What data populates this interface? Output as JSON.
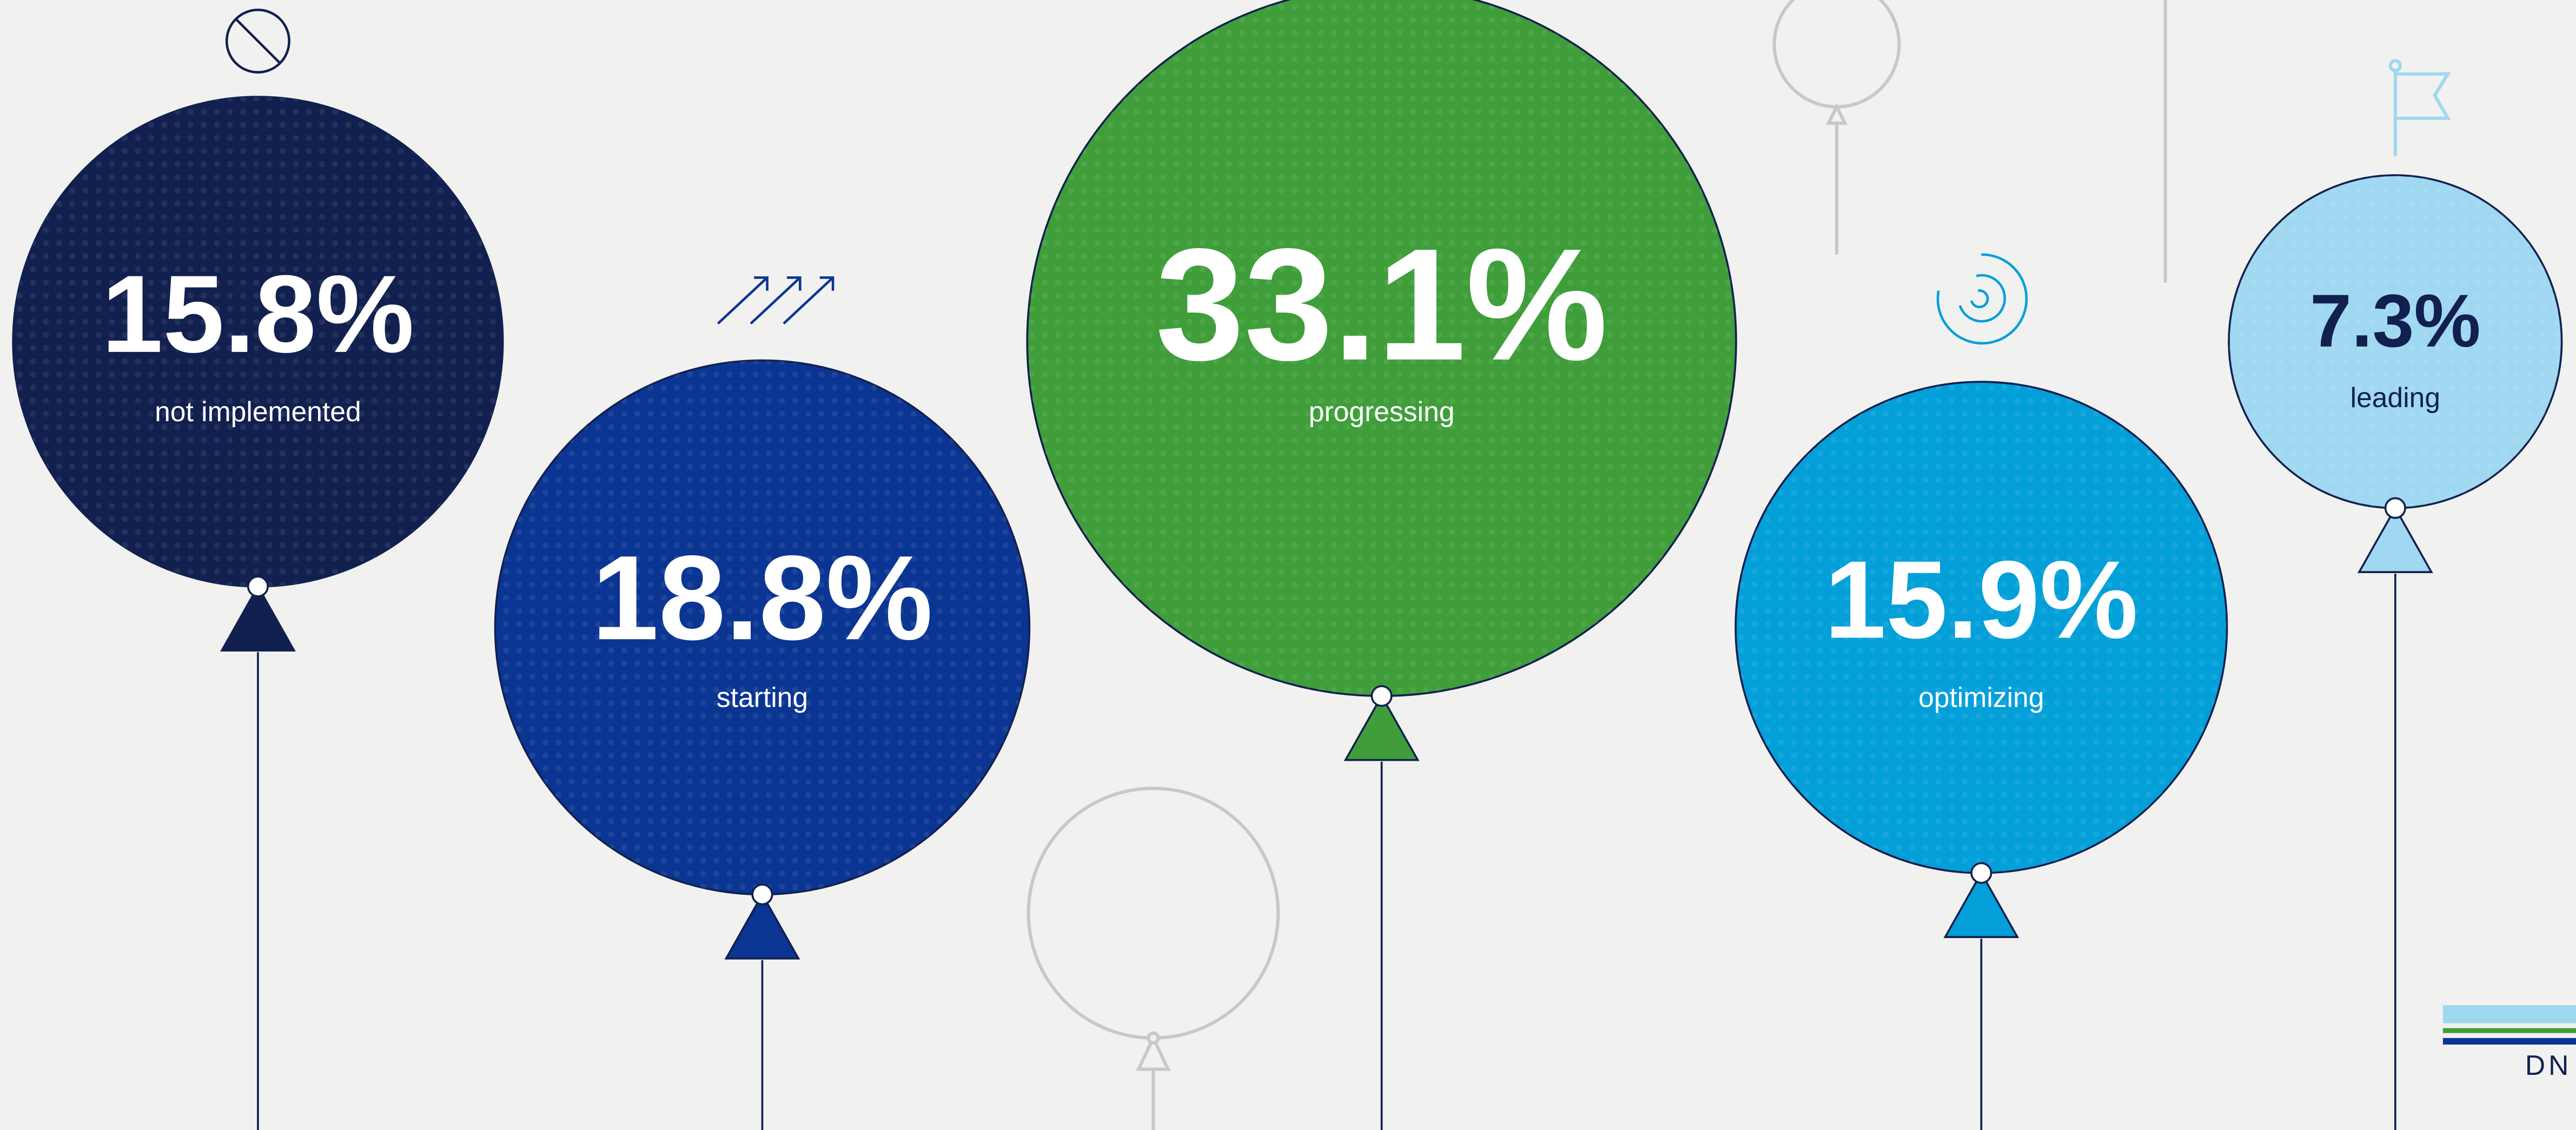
{
  "chart_data": {
    "type": "balloon",
    "categories": [
      "not implemented",
      "starting",
      "progressing",
      "optimizing",
      "leading"
    ],
    "values": [
      15.8,
      18.8,
      33.1,
      15.9,
      7.3
    ],
    "value_labels": [
      "15.8%",
      "18.8%",
      "33.1%",
      "15.9%",
      "7.3%"
    ],
    "colors": [
      "#12204f",
      "#0a3593",
      "#3f9e3a",
      "#039fd9",
      "#9fd8f0"
    ],
    "text_colors": [
      "#ffffff",
      "#ffffff",
      "#ffffff",
      "#ffffff",
      "#12204f"
    ]
  },
  "logo_text": "DN"
}
